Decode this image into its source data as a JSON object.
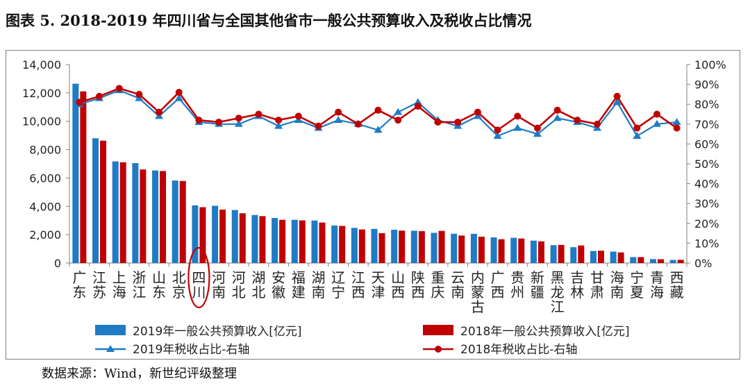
{
  "title": "图表 5. 2018-2019 年四川省与全国其他省市一般公共预算收入及税收占比情况",
  "source": "数据来源：Wind，新世纪评级整理",
  "chart_data": {
    "type": "bar",
    "categories": [
      "广东",
      "江苏",
      "上海",
      "浙江",
      "山东",
      "北京",
      "四川",
      "河南",
      "河北",
      "湖北",
      "安徽",
      "福建",
      "湖南",
      "辽宁",
      "江西",
      "天津",
      "山西",
      "陕西",
      "重庆",
      "云南",
      "内蒙古",
      "广西",
      "贵州",
      "新疆",
      "黑龙江",
      "吉林",
      "甘肃",
      "海南",
      "宁夏",
      "青海",
      "西藏"
    ],
    "series": [
      {
        "name": "2019年一般公共预算收入[亿元]",
        "type": "bar",
        "axis": "left",
        "color": "#1f7bc4",
        "values": [
          12650,
          8800,
          7170,
          7050,
          6530,
          5820,
          4070,
          4040,
          3740,
          3390,
          3180,
          3050,
          3000,
          2650,
          2480,
          2410,
          2350,
          2280,
          2130,
          2070,
          2060,
          1810,
          1780,
          1580,
          1260,
          1120,
          850,
          810,
          420,
          280,
          220
        ]
      },
      {
        "name": "2018年一般公共预算收入[亿元]",
        "type": "bar",
        "axis": "left",
        "color": "#c00000",
        "values": [
          12110,
          8630,
          7110,
          6600,
          6490,
          5790,
          3940,
          3770,
          3510,
          3310,
          3050,
          3010,
          2860,
          2620,
          2370,
          2110,
          2290,
          2250,
          2270,
          1940,
          1860,
          1680,
          1730,
          1530,
          1280,
          1240,
          870,
          750,
          420,
          270,
          230
        ]
      },
      {
        "name": "2019年税收占比-右轴",
        "type": "line",
        "axis": "right",
        "color": "#1f7bc4",
        "marker": "triangle",
        "values": [
          0.8,
          0.83,
          0.87,
          0.83,
          0.74,
          0.83,
          0.71,
          0.7,
          0.7,
          0.74,
          0.69,
          0.72,
          0.68,
          0.72,
          0.7,
          0.67,
          0.76,
          0.81,
          0.72,
          0.69,
          0.74,
          0.64,
          0.68,
          0.65,
          0.73,
          0.71,
          0.68,
          0.81,
          0.64,
          0.7,
          0.71
        ]
      },
      {
        "name": "2018年税收占比-右轴",
        "type": "line",
        "axis": "right",
        "color": "#c00000",
        "marker": "circle",
        "values": [
          0.81,
          0.84,
          0.88,
          0.85,
          0.76,
          0.86,
          0.72,
          0.71,
          0.73,
          0.75,
          0.72,
          0.74,
          0.69,
          0.76,
          0.7,
          0.77,
          0.72,
          0.79,
          0.71,
          0.71,
          0.76,
          0.67,
          0.74,
          0.68,
          0.77,
          0.72,
          0.7,
          0.84,
          0.68,
          0.75,
          0.68
        ]
      }
    ],
    "ylim_left": [
      0,
      14000
    ],
    "yticks_left": [
      "0",
      "2,000",
      "4,000",
      "6,000",
      "8,000",
      "10,000",
      "12,000",
      "14,000"
    ],
    "ylim_right": [
      0,
      1
    ],
    "yticks_right": [
      "0%",
      "10%",
      "20%",
      "30%",
      "40%",
      "50%",
      "60%",
      "70%",
      "80%",
      "90%",
      "100%"
    ],
    "highlight_category": "四川",
    "highlight_color": "#c00000",
    "grid": false,
    "legend_position": "bottom"
  }
}
